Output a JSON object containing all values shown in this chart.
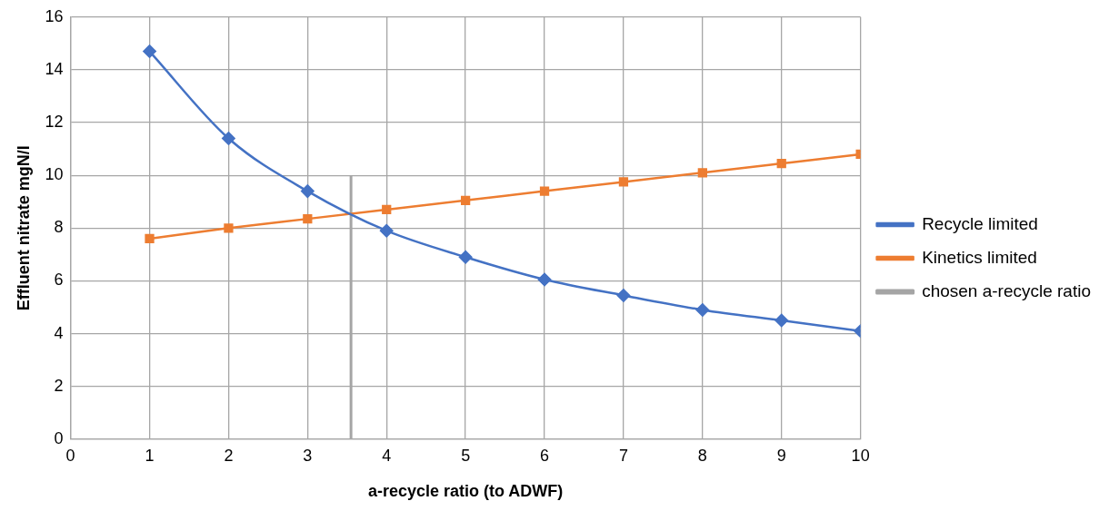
{
  "chart_data": {
    "type": "line",
    "xlabel": "a-recycle ratio (to ADWF)",
    "ylabel": "Effluent nitrate mgN/l",
    "xlim": [
      0,
      10
    ],
    "xticks": [
      0,
      1,
      2,
      3,
      4,
      5,
      6,
      7,
      8,
      9,
      10
    ],
    "ylim": [
      0,
      16
    ],
    "yticks": [
      0,
      2,
      4,
      6,
      8,
      10,
      12,
      14,
      16
    ],
    "grid": true,
    "legend": "right",
    "line_style": "solid",
    "series": [
      {
        "name": "Recycle limited",
        "color": "#4472c4",
        "marker": "diamond",
        "x": [
          1,
          2,
          3,
          4,
          5,
          6,
          7,
          8,
          9,
          10
        ],
        "values": [
          14.7,
          11.4,
          9.4,
          7.9,
          6.9,
          6.05,
          5.45,
          4.9,
          4.5,
          4.1
        ]
      },
      {
        "name": "Kinetics limited",
        "color": "#ed7d31",
        "marker": "square",
        "x": [
          1,
          2,
          3,
          4,
          5,
          6,
          7,
          8,
          9,
          10
        ],
        "values": [
          7.6,
          8.0,
          8.35,
          8.7,
          9.05,
          9.4,
          9.75,
          10.1,
          10.45,
          10.8
        ]
      },
      {
        "name": "chosen a-recycle ratio",
        "color": "#a5a5a5",
        "marker": "none",
        "x": [
          3.55,
          3.55
        ],
        "values": [
          0,
          10
        ]
      }
    ]
  }
}
